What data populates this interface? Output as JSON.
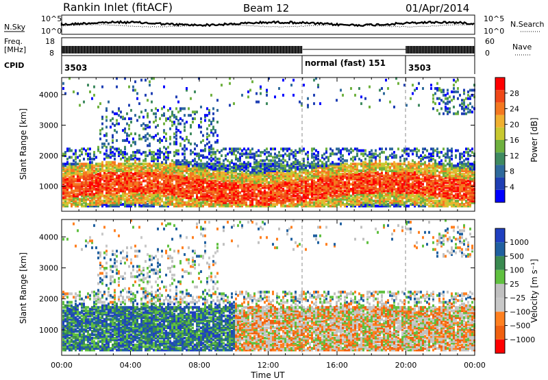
{
  "header": {
    "station": "Rankin Inlet (fitACF)",
    "beam": "Beam 12",
    "date": "01/Apr/2014"
  },
  "top_panels": {
    "nsky_label": "N.Sky",
    "nsky_ticks": [
      "10^5",
      "10^0"
    ],
    "nsearch_label": "N.Search",
    "nsearch_ticks": [
      "10^5",
      "10^0"
    ],
    "freq_label_line1": "Freq.",
    "freq_label_line2": "[MHz]",
    "freq_ticks": [
      "18",
      "8"
    ],
    "nave_label": "Nave",
    "nave_ticks": [
      "60",
      "0"
    ],
    "cpid_label": "CPID",
    "cpid_segments": [
      {
        "label": "3503",
        "start_h": 0,
        "end_h": 14
      },
      {
        "label": "normal (fast) 151",
        "start_h": 14,
        "end_h": 20
      },
      {
        "label": "3503",
        "start_h": 20,
        "end_h": 24
      }
    ]
  },
  "colors": {
    "power_scale": [
      "#0000ff",
      "#1f3fb4",
      "#2f6a9c",
      "#3f8a60",
      "#6fb13f",
      "#c8c830",
      "#f0b030",
      "#f47820",
      "#f04818",
      "#ff0000"
    ],
    "velocity_scale": [
      "#2040c0",
      "#2060a0",
      "#3a8a50",
      "#60c040",
      "#c0c0c0",
      "#c8c8c8",
      "#ff8020",
      "#f06010",
      "#ff0000"
    ]
  },
  "chart_data": [
    {
      "type": "heatmap",
      "title": "Power",
      "xlabel": "Time UT",
      "ylabel": "Slant Range [km]",
      "x_ticks": [
        "00:00",
        "04:00",
        "08:00",
        "12:00",
        "16:00",
        "20:00",
        "00:00"
      ],
      "xlim": [
        0,
        24
      ],
      "y_ticks": [
        1000,
        2000,
        3000,
        4000
      ],
      "ylim": [
        180,
        4560
      ],
      "colorbar_label": "Power [dB]",
      "colorbar_ticks": [
        "4",
        "8",
        "12",
        "16",
        "20",
        "24",
        "28"
      ],
      "colorbar_range": [
        0,
        30
      ],
      "dashed_time_markers_h": [
        14,
        20
      ],
      "grid": false
    },
    {
      "type": "heatmap",
      "title": "Velocity",
      "xlabel": "Time UT",
      "ylabel": "Slant Range [km]",
      "x_ticks": [
        "00:00",
        "04:00",
        "08:00",
        "12:00",
        "16:00",
        "20:00",
        "00:00"
      ],
      "xlim": [
        0,
        24
      ],
      "y_ticks": [
        1000,
        2000,
        3000,
        4000
      ],
      "ylim": [
        180,
        4560
      ],
      "colorbar_label": "Velocity [m s⁻¹]",
      "colorbar_ticks": [
        "1000",
        "500",
        "100",
        "25",
        "−25",
        "−100",
        "−500",
        "−1000"
      ],
      "dashed_time_markers_h": [
        14,
        20
      ],
      "grid": false
    }
  ]
}
